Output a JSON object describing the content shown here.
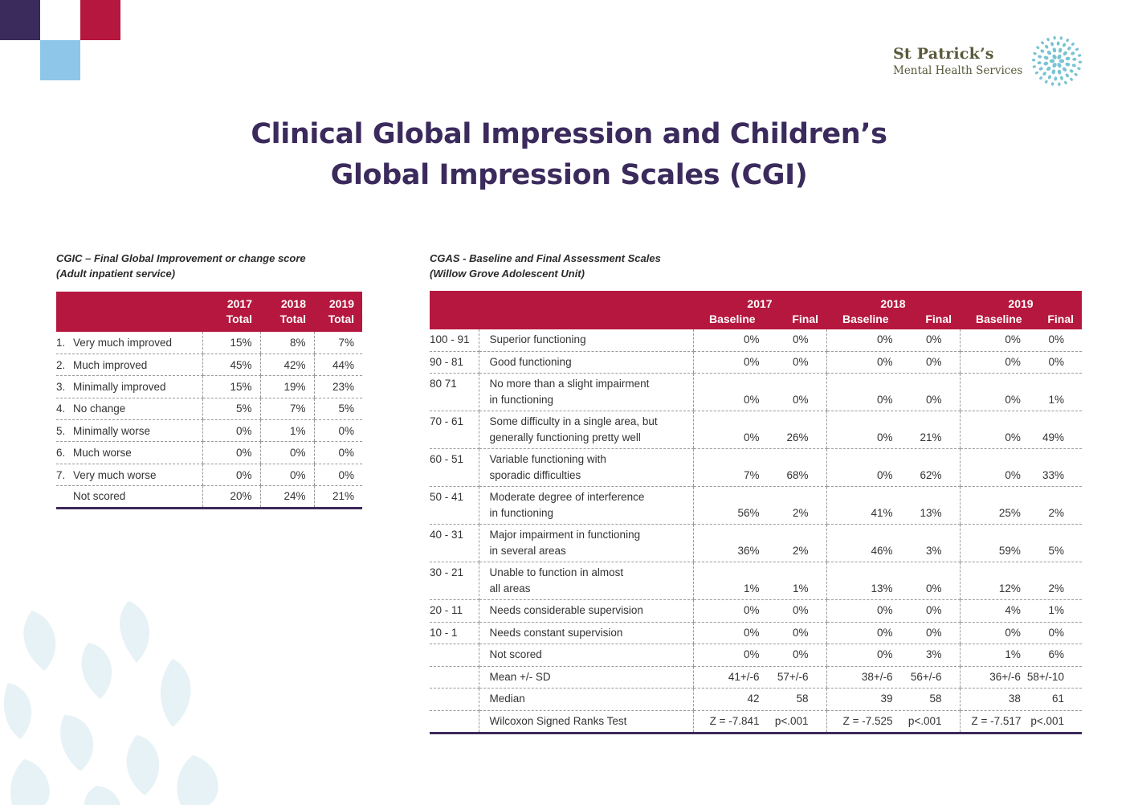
{
  "brand": {
    "name": "St Patrick’s",
    "subtitle": "Mental Health Services",
    "colors": {
      "purple": "#3b2a5c",
      "red": "#b5173e",
      "light_blue": "#8dc6e8",
      "flower": "#79c3d4"
    }
  },
  "title": {
    "line1": "Clinical Global Impression and Children’s",
    "line2": "Global Impression Scales (CGI)"
  },
  "cgic": {
    "caption_line1": "CGIC – Final Global Improvement or change score",
    "caption_line2": "(Adult inpatient service)",
    "headers": [
      {
        "year": "2017",
        "label": "Total"
      },
      {
        "year": "2018",
        "label": "Total"
      },
      {
        "year": "2019",
        "label": "Total"
      }
    ],
    "rows": [
      {
        "num": "1.",
        "label": "Very much improved",
        "values": [
          "15%",
          "8%",
          "7%"
        ]
      },
      {
        "num": "2.",
        "label": "Much improved",
        "values": [
          "45%",
          "42%",
          "44%"
        ]
      },
      {
        "num": "3.",
        "label": "Minimally improved",
        "values": [
          "15%",
          "19%",
          "23%"
        ]
      },
      {
        "num": "4.",
        "label": "No change",
        "values": [
          "5%",
          "7%",
          "5%"
        ]
      },
      {
        "num": "5.",
        "label": "Minimally worse",
        "values": [
          "0%",
          "1%",
          "0%"
        ]
      },
      {
        "num": "6.",
        "label": "Much worse",
        "values": [
          "0%",
          "0%",
          "0%"
        ]
      },
      {
        "num": "7.",
        "label": "Very much worse",
        "values": [
          "0%",
          "0%",
          "0%"
        ]
      },
      {
        "num": "",
        "label": "Not scored",
        "values": [
          "20%",
          "24%",
          "21%"
        ]
      }
    ]
  },
  "cgas": {
    "caption_line1": "CGAS - Baseline and Final Assessment Scales",
    "caption_line2": "(Willow Grove Adolescent Unit)",
    "years": [
      "2017",
      "2018",
      "2019"
    ],
    "sub_headers": {
      "baseline": "Baseline",
      "final": "Final"
    },
    "rows": [
      {
        "range": "100 - 91",
        "desc": [
          "Superior functioning"
        ],
        "values": [
          [
            "0%",
            "0%"
          ],
          [
            "0%",
            "0%"
          ],
          [
            "0%",
            "0%"
          ]
        ]
      },
      {
        "range": "90 - 81",
        "desc": [
          "Good functioning"
        ],
        "values": [
          [
            "0%",
            "0%"
          ],
          [
            "0%",
            "0%"
          ],
          [
            "0%",
            "0%"
          ]
        ]
      },
      {
        "range": "80 71",
        "desc": [
          "No more than a slight impairment",
          "in functioning"
        ],
        "values": [
          [
            "0%",
            "0%"
          ],
          [
            "0%",
            "0%"
          ],
          [
            "0%",
            "1%"
          ]
        ]
      },
      {
        "range": "70 - 61",
        "desc": [
          "Some difficulty in a single area, but",
          "generally functioning pretty well"
        ],
        "values": [
          [
            "0%",
            "26%"
          ],
          [
            "0%",
            "21%"
          ],
          [
            "0%",
            "49%"
          ]
        ]
      },
      {
        "range": "60 - 51",
        "desc": [
          "Variable functioning with",
          "sporadic difficulties"
        ],
        "values": [
          [
            "7%",
            "68%"
          ],
          [
            "0%",
            "62%"
          ],
          [
            "0%",
            "33%"
          ]
        ]
      },
      {
        "range": "50 - 41",
        "desc": [
          "Moderate degree of interference",
          "in functioning"
        ],
        "values": [
          [
            "56%",
            "2%"
          ],
          [
            "41%",
            "13%"
          ],
          [
            "25%",
            "2%"
          ]
        ]
      },
      {
        "range": "40 - 31",
        "desc": [
          "Major impairment in functioning",
          "in several areas"
        ],
        "values": [
          [
            "36%",
            "2%"
          ],
          [
            "46%",
            "3%"
          ],
          [
            "59%",
            "5%"
          ]
        ]
      },
      {
        "range": "30 - 21",
        "desc": [
          "Unable to function in almost",
          "all areas"
        ],
        "values": [
          [
            "1%",
            "1%"
          ],
          [
            "13%",
            "0%"
          ],
          [
            "12%",
            "2%"
          ]
        ]
      },
      {
        "range": "20 - 11",
        "desc": [
          "Needs considerable supervision"
        ],
        "values": [
          [
            "0%",
            "0%"
          ],
          [
            "0%",
            "0%"
          ],
          [
            "4%",
            "1%"
          ]
        ]
      },
      {
        "range": "10 - 1",
        "desc": [
          "Needs constant supervision"
        ],
        "values": [
          [
            "0%",
            "0%"
          ],
          [
            "0%",
            "0%"
          ],
          [
            "0%",
            "0%"
          ]
        ]
      },
      {
        "range": "",
        "desc": [
          "Not scored"
        ],
        "values": [
          [
            "0%",
            "0%"
          ],
          [
            "0%",
            "3%"
          ],
          [
            "1%",
            "6%"
          ]
        ]
      },
      {
        "range": "",
        "desc": [
          "Mean +/- SD"
        ],
        "values": [
          [
            "41+/-6",
            "57+/-6"
          ],
          [
            "38+/-6",
            "56+/-6"
          ],
          [
            "36+/-6",
            "58+/-10"
          ]
        ]
      },
      {
        "range": "",
        "desc": [
          "Median"
        ],
        "values": [
          [
            "42",
            "58"
          ],
          [
            "39",
            "58"
          ],
          [
            "38",
            "61"
          ]
        ]
      },
      {
        "range": "",
        "desc": [
          "Wilcoxon Signed Ranks Test"
        ],
        "values": [
          [
            "Z = -7.841",
            "p<.001"
          ],
          [
            "Z = -7.525",
            "p<.001"
          ],
          [
            "Z = -7.517",
            "p<.001"
          ]
        ]
      }
    ]
  }
}
